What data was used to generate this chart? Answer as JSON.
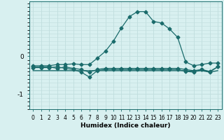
{
  "xlabel": "Humidex (Indice chaleur)",
  "ylabel": "",
  "xlim": [
    -0.5,
    23.5
  ],
  "ylim": [
    -1.4,
    1.45
  ],
  "yticks": [
    -1,
    0
  ],
  "xticks": [
    0,
    1,
    2,
    3,
    4,
    5,
    6,
    7,
    8,
    9,
    10,
    11,
    12,
    13,
    14,
    15,
    16,
    17,
    18,
    19,
    20,
    21,
    22,
    23
  ],
  "background_color": "#d8f0f0",
  "grid_color": "#c0dede",
  "line_color": "#1a6b6b",
  "line1_x": [
    0,
    1,
    2,
    3,
    4,
    5,
    6,
    7,
    8,
    9,
    10,
    11,
    12,
    13,
    14,
    15,
    16,
    17,
    18,
    19,
    20,
    21,
    22,
    23
  ],
  "line1_y": [
    -0.25,
    -0.25,
    -0.25,
    -0.22,
    -0.22,
    -0.2,
    -0.22,
    -0.22,
    -0.05,
    0.13,
    0.4,
    0.75,
    1.05,
    1.18,
    1.18,
    0.92,
    0.88,
    0.72,
    0.5,
    -0.15,
    -0.25,
    -0.22,
    -0.18,
    -0.18
  ],
  "line2_x": [
    0,
    1,
    2,
    3,
    4,
    5,
    6,
    7,
    8,
    9,
    10,
    11,
    12,
    13,
    14,
    15,
    16,
    17,
    18,
    19,
    20,
    21,
    22,
    23
  ],
  "line2_y": [
    -0.28,
    -0.28,
    -0.28,
    -0.32,
    -0.28,
    -0.32,
    -0.35,
    -0.42,
    -0.35,
    -0.32,
    -0.32,
    -0.32,
    -0.32,
    -0.32,
    -0.32,
    -0.32,
    -0.32,
    -0.32,
    -0.32,
    -0.35,
    -0.38,
    -0.35,
    -0.4,
    -0.28
  ],
  "line3_x": [
    0,
    1,
    2,
    3,
    4,
    5,
    6,
    7,
    8,
    9,
    10,
    11,
    12,
    13,
    14,
    15,
    16,
    17,
    18,
    19,
    20,
    21,
    22,
    23
  ],
  "line3_y": [
    -0.38,
    -0.38,
    -0.38,
    -0.38,
    -0.38,
    -0.38,
    -0.38,
    -0.38,
    -0.38,
    -0.38,
    -0.38,
    -0.38,
    -0.38,
    -0.38,
    -0.38,
    -0.38,
    -0.38,
    -0.38,
    -0.38,
    -0.38,
    -0.4,
    -0.38,
    -0.42,
    -0.38
  ],
  "line4_x": [
    0,
    1,
    2,
    3,
    4,
    5,
    6,
    7,
    8,
    9,
    10,
    11,
    12,
    13,
    14,
    15,
    16,
    17,
    18,
    19,
    20,
    21,
    22,
    23
  ],
  "line4_y": [
    -0.3,
    -0.3,
    -0.3,
    -0.28,
    -0.32,
    -0.35,
    -0.42,
    -0.55,
    -0.38,
    -0.35,
    -0.35,
    -0.35,
    -0.35,
    -0.35,
    -0.35,
    -0.35,
    -0.35,
    -0.35,
    -0.35,
    -0.4,
    -0.42,
    -0.35,
    -0.42,
    -0.28
  ]
}
